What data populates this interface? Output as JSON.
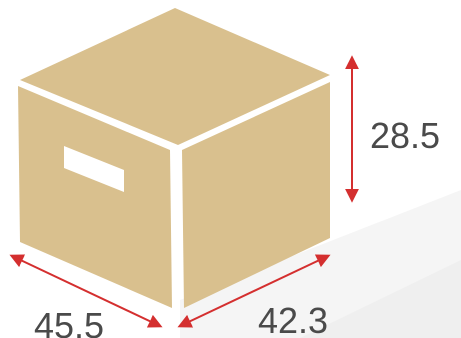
{
  "diagram": {
    "box_color": "#d9c08e",
    "edge_color": "#ffffff",
    "arrow_color": "#d42f2f",
    "dimensions": {
      "height": "28.5",
      "length": "45.5",
      "width": "42.3"
    }
  }
}
